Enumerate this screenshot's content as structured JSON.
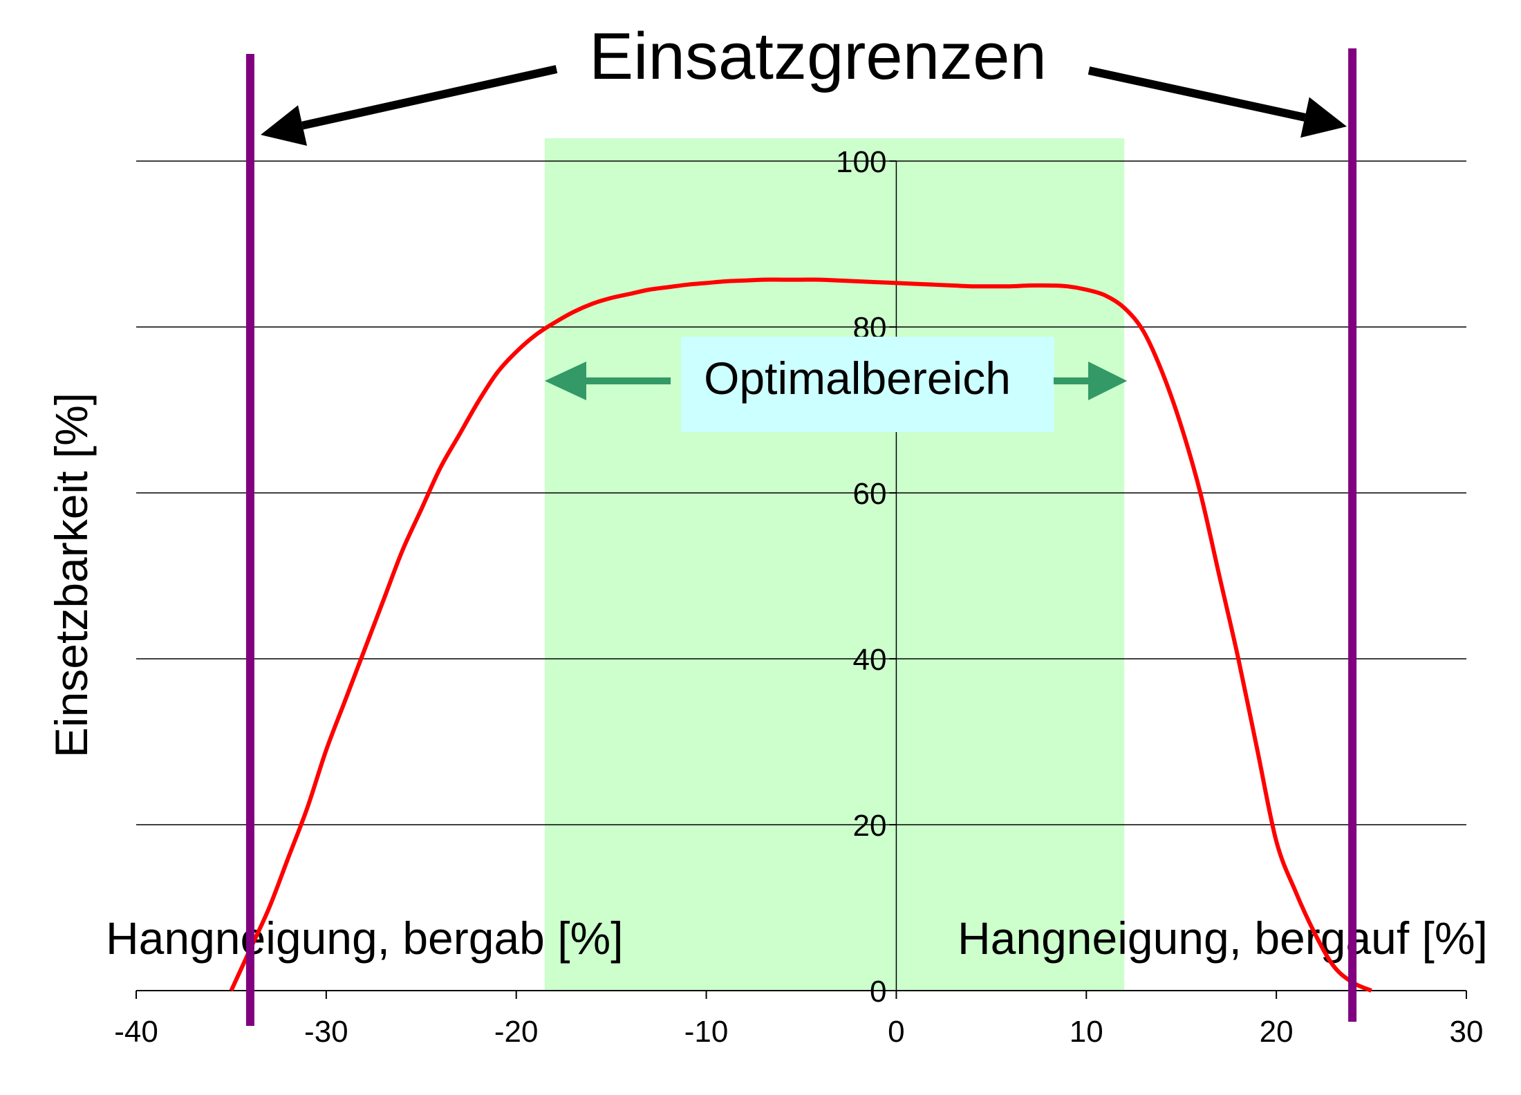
{
  "chart_data": {
    "type": "line",
    "title": "Einsatzgrenzen",
    "ylabel": "Einsetzbarkeit [%]",
    "xlabel_left": "Hangneigung, bergab [%]",
    "xlabel_right": "Hangneigung, bergauf [%]",
    "xlim": [
      -40,
      30
    ],
    "ylim": [
      0,
      100
    ],
    "x_ticks": [
      -40,
      -30,
      -20,
      -10,
      0,
      10,
      20,
      30
    ],
    "y_ticks": [
      0,
      20,
      40,
      60,
      80,
      100
    ],
    "grid": "horizontal",
    "series": [
      {
        "color": "#ff0000",
        "x": [
          -35,
          -34,
          -33,
          -32,
          -31,
          -30,
          -29,
          -28,
          -27,
          -26,
          -25,
          -24,
          -23,
          -22,
          -21,
          -20,
          -19,
          -18,
          -17,
          -16,
          -15,
          -14,
          -13,
          -12,
          -11,
          -10,
          -9,
          -8,
          -7,
          -6,
          -5,
          -4,
          -3,
          -2,
          -1,
          0,
          1,
          2,
          3,
          4,
          5,
          6,
          7,
          8,
          9,
          10,
          11,
          12,
          13,
          14,
          15,
          16,
          17,
          18,
          19,
          20,
          21,
          22,
          23,
          24,
          25
        ],
        "y": [
          0,
          5,
          10,
          16,
          22,
          29,
          35,
          41,
          47,
          53,
          58,
          63,
          67,
          71,
          74.5,
          77,
          79,
          80.5,
          81.8,
          82.8,
          83.5,
          84,
          84.5,
          84.8,
          85.1,
          85.3,
          85.5,
          85.6,
          85.7,
          85.7,
          85.7,
          85.7,
          85.6,
          85.5,
          85.4,
          85.3,
          85.2,
          85.1,
          85,
          84.9,
          84.9,
          84.9,
          85,
          85,
          84.9,
          84.5,
          83.8,
          82.3,
          79.5,
          74.5,
          68,
          60,
          50,
          40,
          29,
          18,
          12,
          7,
          3,
          1,
          0
        ]
      }
    ],
    "optimal_range": {
      "label": "Optimalbereich",
      "x_from": -18.5,
      "x_to": 12,
      "fill": "#ccffcc"
    },
    "limits": {
      "x": [
        -34,
        24
      ],
      "color": "#800080"
    },
    "colors": {
      "curve": "#ff0000",
      "limit_lines": "#800080",
      "optimal_fill": "#ccffcc",
      "optimal_label_fill": "#ccffff",
      "optimal_arrows": "#339966",
      "title_arrows": "#000000"
    }
  }
}
